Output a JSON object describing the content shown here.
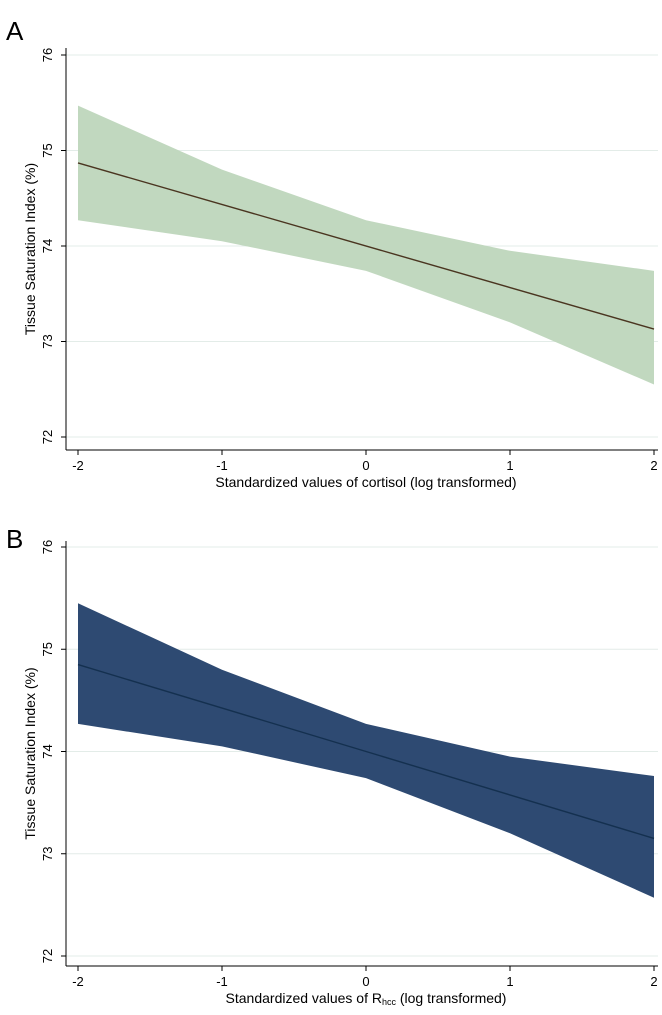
{
  "chart_data": [
    {
      "panel_label": "A",
      "type": "line",
      "xlabel": "Standardized values of cortisol (log transformed)",
      "ylabel": "Tissue Saturation Index (%)",
      "xlim": [
        -2,
        2
      ],
      "ylim": [
        72,
        76
      ],
      "x_ticks": [
        "-2",
        "-1",
        "0",
        "1",
        "2"
      ],
      "y_ticks": [
        "72",
        "73",
        "74",
        "75",
        "76"
      ],
      "grid": true,
      "line": {
        "x": [
          -2,
          2
        ],
        "y": [
          74.87,
          73.13
        ]
      },
      "band": {
        "x": [
          -2,
          -1,
          0,
          1,
          2
        ],
        "upper": [
          75.47,
          74.8,
          74.27,
          73.95,
          73.74
        ],
        "lower": [
          74.27,
          74.05,
          73.74,
          73.2,
          72.55
        ]
      },
      "colors": {
        "band": "#c1d8bf",
        "line": "#4a3520"
      }
    },
    {
      "panel_label": "B",
      "type": "line",
      "xlabel_main": "Standardized values of R",
      "xlabel_sub": "hcc",
      "xlabel_tail": " (log transformed)",
      "ylabel": "Tissue Saturation Index (%)",
      "xlim": [
        -2,
        2
      ],
      "ylim": [
        72,
        76
      ],
      "x_ticks": [
        "-2",
        "-1",
        "0",
        "1",
        "2"
      ],
      "y_ticks": [
        "72",
        "73",
        "74",
        "75",
        "76"
      ],
      "grid": true,
      "line": {
        "x": [
          -2,
          2
        ],
        "y": [
          74.85,
          73.15
        ]
      },
      "band": {
        "x": [
          -2,
          -1,
          0,
          1,
          2
        ],
        "upper": [
          75.45,
          74.8,
          74.27,
          73.95,
          73.76
        ],
        "lower": [
          74.27,
          74.05,
          73.74,
          73.2,
          72.57
        ]
      },
      "colors": {
        "band": "#2e4a72",
        "line": "#14304f"
      }
    }
  ]
}
